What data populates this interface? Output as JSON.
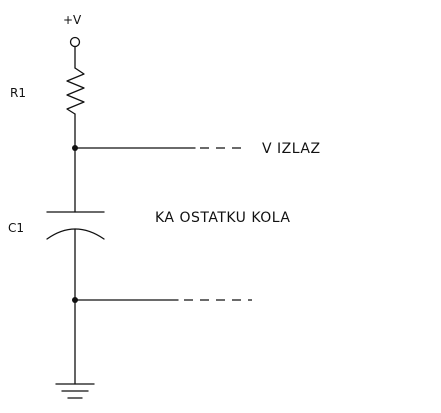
{
  "supply_label": "+V",
  "resistor_label": "R1",
  "capacitor_label": "C1",
  "output_label": "V IZLAZ",
  "rest_of_circuit_label": "KA OSTATKU KOLA"
}
